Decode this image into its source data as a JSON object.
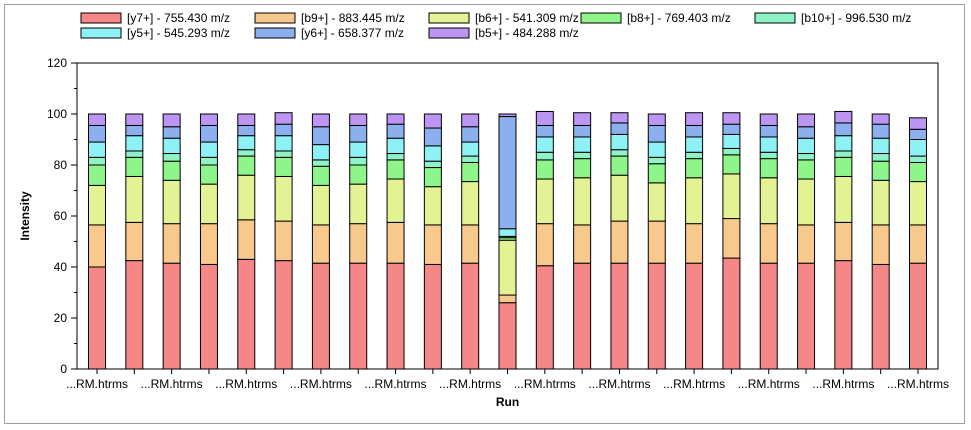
{
  "chart_data": {
    "type": "bar",
    "stacked": true,
    "title": "",
    "xlabel": "Run",
    "ylabel": "Intensity",
    "ylim": [
      0,
      120
    ],
    "yticks": [
      0,
      20,
      40,
      60,
      80,
      100,
      120
    ],
    "grid": false,
    "legend_position": "top",
    "categories": [
      "...RM.htrms",
      "...RM.htrms",
      "...RM.htrms",
      "...RM.htrms",
      "...RM.htrms",
      "...RM.htrms",
      "...RM.htrms",
      "...RM.htrms",
      "...RM.htrms",
      "...RM.htrms",
      "...RM.htrms",
      "...RM.htrms",
      "...RM.htrms",
      "...RM.htrms",
      "...RM.htrms",
      "...RM.htrms",
      "...RM.htrms",
      "...RM.htrms",
      "...RM.htrms",
      "...RM.htrms",
      "...RM.htrms",
      "...RM.htrms",
      "...RM.htrms"
    ],
    "visible_x_labels": [
      1,
      3,
      5,
      7,
      9,
      11,
      13,
      15,
      17,
      19,
      21,
      23
    ],
    "series": [
      {
        "name": "[y7+] - 755.430 m/z",
        "color": "#f58787",
        "values": [
          40,
          42.5,
          41.5,
          41,
          43,
          42.5,
          41.5,
          41.5,
          41.5,
          41,
          41.5,
          26,
          40.5,
          41.5,
          41.5,
          41.5,
          41.5,
          43.5,
          41.5,
          41.5,
          42.5,
          41,
          41.5
        ]
      },
      {
        "name": "[b9+] - 883.445 m/z",
        "color": "#f7c98c",
        "values": [
          16.5,
          15,
          15.5,
          16,
          15.5,
          15.5,
          15,
          15.5,
          16,
          15.5,
          15,
          3,
          16.5,
          15,
          16.5,
          16.5,
          15.5,
          15.5,
          15.5,
          15,
          15,
          15.5,
          15
        ]
      },
      {
        "name": "[b6+] - 541.309 m/z",
        "color": "#e3f393",
        "values": [
          15.5,
          18,
          17,
          15.5,
          17.5,
          17.5,
          15.5,
          15.5,
          17,
          15,
          17,
          21.5,
          17.5,
          18.5,
          18,
          15,
          18,
          17.5,
          18,
          18,
          18,
          17.5,
          17
        ]
      },
      {
        "name": "[b8+] - 769.403 m/z",
        "color": "#8ef58a",
        "values": [
          8,
          7.5,
          7.5,
          7.5,
          7.5,
          7.5,
          7.5,
          7.5,
          7.5,
          7.5,
          7.5,
          1,
          7.5,
          7.5,
          7.5,
          7.5,
          7.5,
          7.5,
          7.5,
          7.5,
          7.5,
          7.5,
          7.5
        ]
      },
      {
        "name": "[b10+] - 996.530 m/z",
        "color": "#8ef3c7",
        "values": [
          3,
          2.5,
          3,
          3,
          2.5,
          2.5,
          2.5,
          3,
          2.5,
          2.5,
          2.5,
          0.5,
          3,
          2.5,
          2.5,
          2.5,
          2.5,
          2.5,
          2.5,
          2.5,
          2.5,
          3,
          2.5
        ]
      },
      {
        "name": "[y5+] - 545.293 m/z",
        "color": "#8ef1f5",
        "values": [
          6,
          6,
          6,
          6,
          5.5,
          6,
          6,
          6,
          6,
          6,
          5.5,
          3,
          6,
          6,
          6,
          6,
          6,
          5.5,
          6,
          6,
          6,
          6,
          6.5
        ]
      },
      {
        "name": "[y6+] - 658.377 m/z",
        "color": "#8cafee",
        "values": [
          6.5,
          4,
          4.5,
          6.5,
          4,
          4.5,
          7,
          6.5,
          5.5,
          7,
          6,
          44,
          4.5,
          4.5,
          4.5,
          6.5,
          4.5,
          4,
          4.5,
          4.5,
          5,
          5.5,
          4
        ]
      },
      {
        "name": "[b5+] - 484.288 m/z",
        "color": "#bd96f3",
        "values": [
          4.5,
          4.5,
          5,
          4.5,
          4.5,
          4.5,
          5,
          4.5,
          4,
          5.5,
          5,
          1,
          5.5,
          5,
          4,
          4.5,
          5,
          4.5,
          4.5,
          5,
          4.5,
          4,
          4.5
        ]
      }
    ]
  }
}
